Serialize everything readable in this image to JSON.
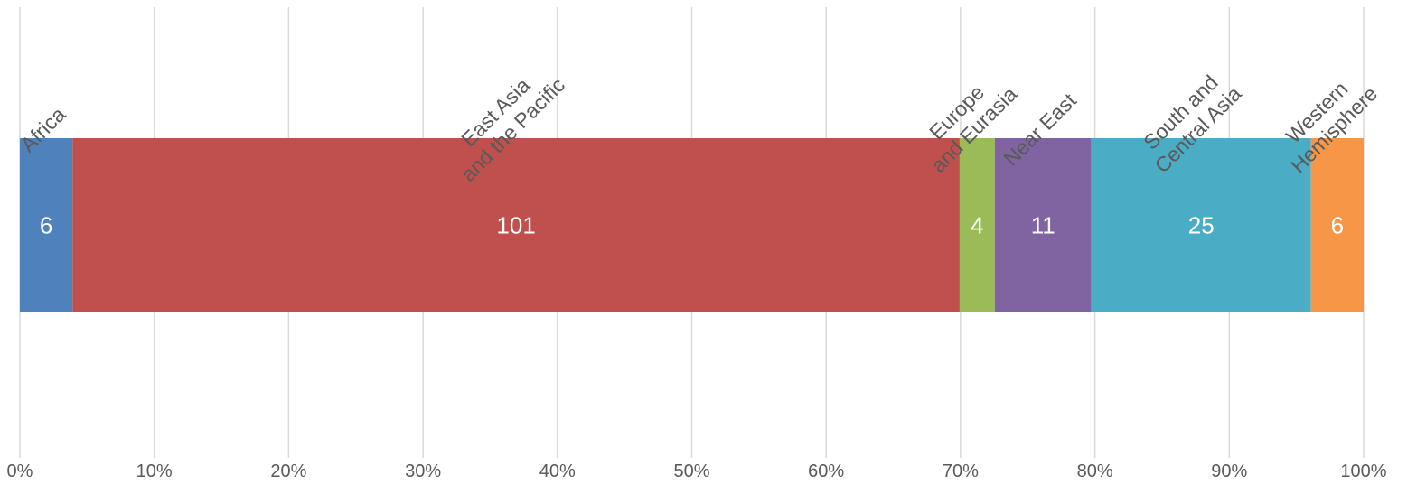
{
  "chart_data": {
    "type": "bar",
    "orientation": "horizontal",
    "stacked": true,
    "percent_stacked": true,
    "title": "",
    "xlabel": "",
    "ylabel": "",
    "xlim": [
      0,
      100
    ],
    "x_ticks": [
      "0%",
      "10%",
      "20%",
      "30%",
      "40%",
      "50%",
      "60%",
      "70%",
      "80%",
      "90%",
      "100%"
    ],
    "grid": true,
    "legend": "none",
    "series": [
      {
        "name": "Africa",
        "label_lines": [
          "Africa"
        ],
        "value": 6,
        "color": "#4f81bd"
      },
      {
        "name": "East Asia and the Pacific",
        "label_lines": [
          "East Asia",
          "and the Pacific"
        ],
        "value": 101,
        "color": "#c0504d"
      },
      {
        "name": "Europe and Eurasia",
        "label_lines": [
          "Europe",
          "and Eurasia"
        ],
        "value": 4,
        "color": "#9bbb59"
      },
      {
        "name": "Near East",
        "label_lines": [
          "Near  East"
        ],
        "value": 11,
        "color": "#8064a2"
      },
      {
        "name": "South and Central Asia",
        "label_lines": [
          "South and",
          "Central Asia"
        ],
        "value": 25,
        "color": "#4bacc6"
      },
      {
        "name": "Western Hemisphere",
        "label_lines": [
          "Western",
          "Hemisphere"
        ],
        "value": 6,
        "color": "#f79646"
      }
    ]
  }
}
